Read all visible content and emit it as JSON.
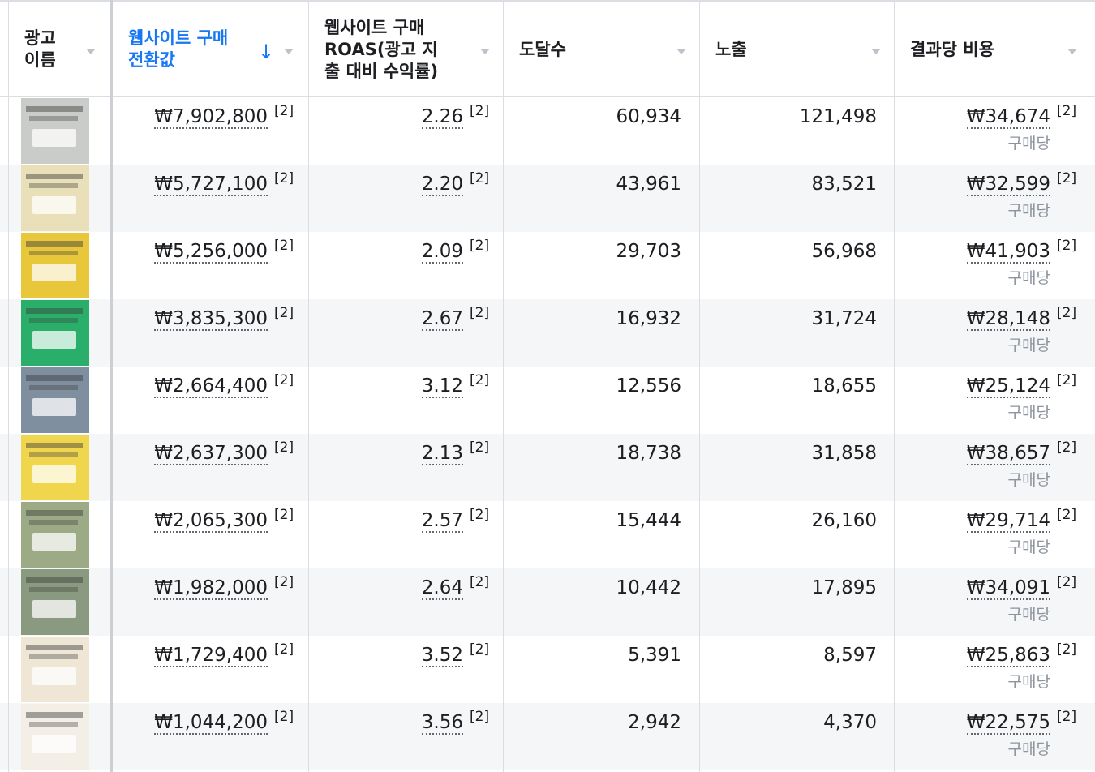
{
  "columns": [
    {
      "label": "광고\n이름"
    },
    {
      "label": "웹사이트 구매\n전환값",
      "sort_icon": "↓"
    },
    {
      "label": "웹사이트 구매\nROAS(광고 지\n출 대비 수익률)"
    },
    {
      "label": "도달수"
    },
    {
      "label": "노출"
    },
    {
      "label": "결과당 비용"
    }
  ],
  "footnote": "[2]",
  "cost_sublabel": "구매당",
  "rows": [
    {
      "value": "₩7,902,800",
      "roas": "2.26",
      "reach": "60,934",
      "impressions": "121,498",
      "cost": "₩34,674",
      "thumb": "#c9ccc8"
    },
    {
      "value": "₩5,727,100",
      "roas": "2.20",
      "reach": "43,961",
      "impressions": "83,521",
      "cost": "₩32,599",
      "thumb": "#e9dfb9"
    },
    {
      "value": "₩5,256,000",
      "roas": "2.09",
      "reach": "29,703",
      "impressions": "56,968",
      "cost": "₩41,903",
      "thumb": "#e8c73a"
    },
    {
      "value": "₩3,835,300",
      "roas": "2.67",
      "reach": "16,932",
      "impressions": "31,724",
      "cost": "₩28,148",
      "thumb": "#2aaf6a"
    },
    {
      "value": "₩2,664,400",
      "roas": "3.12",
      "reach": "12,556",
      "impressions": "18,655",
      "cost": "₩25,124",
      "thumb": "#7f8fa0"
    },
    {
      "value": "₩2,637,300",
      "roas": "2.13",
      "reach": "18,738",
      "impressions": "31,858",
      "cost": "₩38,657",
      "thumb": "#f0d64d"
    },
    {
      "value": "₩2,065,300",
      "roas": "2.57",
      "reach": "15,444",
      "impressions": "26,160",
      "cost": "₩29,714",
      "thumb": "#9cab86"
    },
    {
      "value": "₩1,982,000",
      "roas": "2.64",
      "reach": "10,442",
      "impressions": "17,895",
      "cost": "₩34,091",
      "thumb": "#8a9a80"
    },
    {
      "value": "₩1,729,400",
      "roas": "3.52",
      "reach": "5,391",
      "impressions": "8,597",
      "cost": "₩25,863",
      "thumb": "#efe6d6"
    },
    {
      "value": "₩1,044,200",
      "roas": "3.56",
      "reach": "2,942",
      "impressions": "4,370",
      "cost": "₩22,575",
      "thumb": "#f3eee6"
    }
  ],
  "colors": {
    "accent": "#1877f2",
    "header_text": "#1c1e21",
    "muted": "#8d949e",
    "alt_row": "#f5f6f7"
  }
}
